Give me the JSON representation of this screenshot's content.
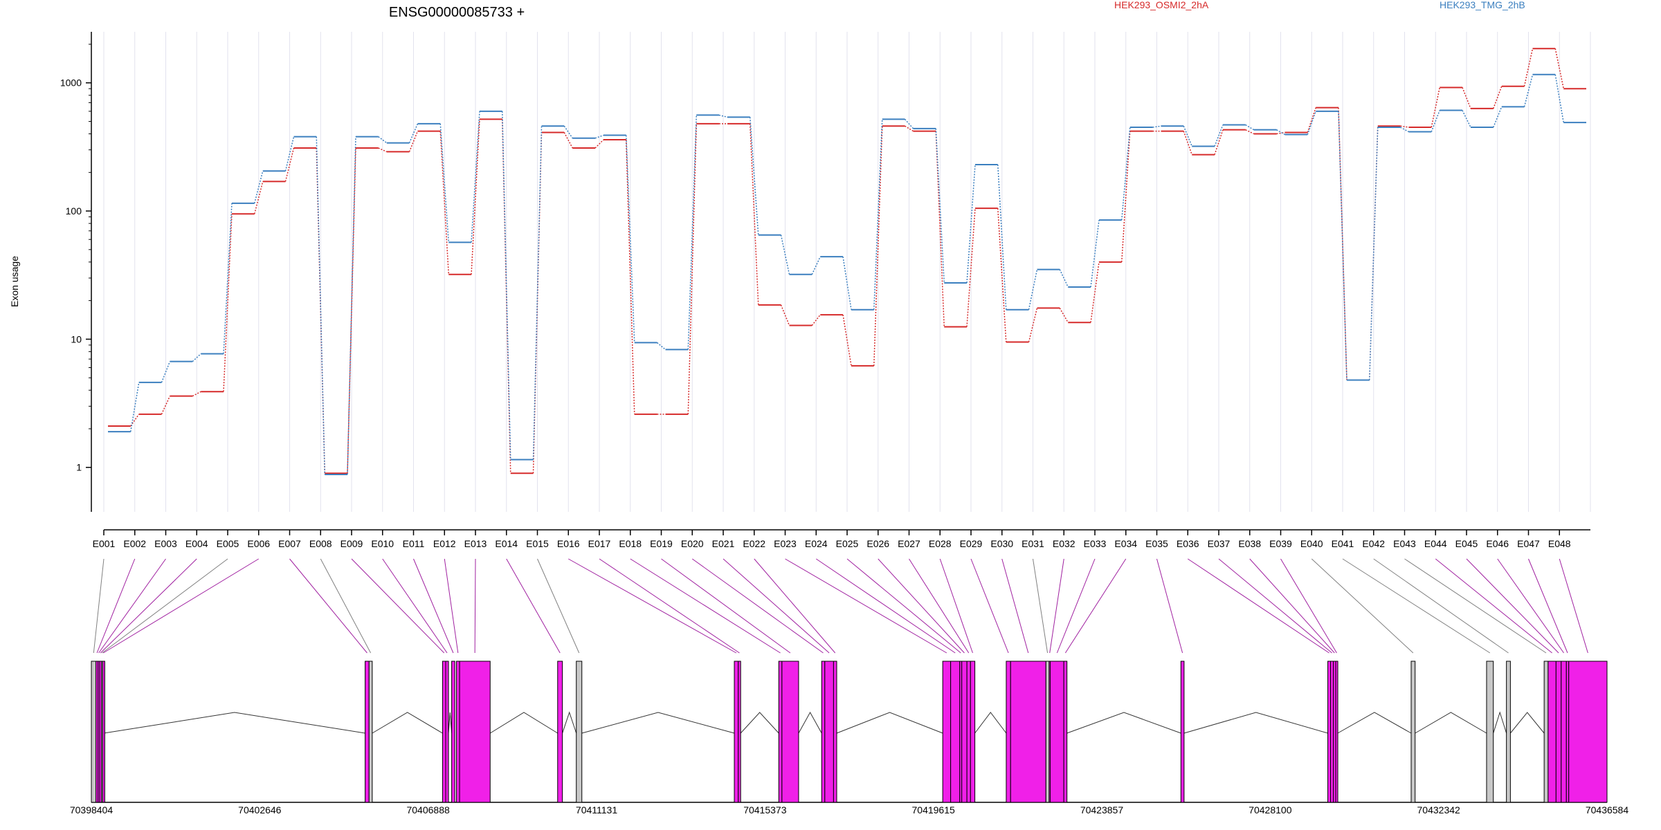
{
  "colors": {
    "series_a": "#d62a2a",
    "series_b": "#3b7fbf",
    "exon_tested": "#f020e8",
    "exon_untested": "#c8c8c8",
    "connector_tested": "#a020a0",
    "connector_untested": "#808080",
    "grid": "#e2e2ee"
  },
  "chart_data": {
    "type": "line",
    "title": "ENSG00000085733 +",
    "ylabel": "Exon usage",
    "xlabel": "",
    "yscale": "log",
    "ylim": [
      0.45,
      2500
    ],
    "yticks": [
      1,
      10,
      100,
      1000
    ],
    "ytick_labels": [
      "1",
      "10",
      "100",
      "1000"
    ],
    "categories": [
      "E001",
      "E002",
      "E003",
      "E004",
      "E005",
      "E006",
      "E007",
      "E008",
      "E009",
      "E010",
      "E011",
      "E012",
      "E013",
      "E014",
      "E015",
      "E016",
      "E017",
      "E018",
      "E019",
      "E020",
      "E021",
      "E022",
      "E023",
      "E024",
      "E025",
      "E026",
      "E027",
      "E028",
      "E029",
      "E030",
      "E031",
      "E032",
      "E033",
      "E034",
      "E035",
      "E036",
      "E037",
      "E038",
      "E039",
      "E040",
      "E041",
      "E042",
      "E043",
      "E044",
      "E045",
      "E046",
      "E047",
      "E048"
    ],
    "legend_position": "top",
    "grid": true,
    "series": [
      {
        "name": "HEK293_OSMI2_2hA",
        "values": [
          2.1,
          2.6,
          3.6,
          3.9,
          95,
          170,
          310,
          0.9,
          310,
          290,
          420,
          32,
          520,
          0.9,
          410,
          310,
          360,
          2.6,
          2.6,
          480,
          480,
          18.5,
          12.8,
          15.5,
          6.2,
          460,
          420,
          12.5,
          105,
          9.5,
          17.5,
          13.5,
          40,
          420,
          420,
          275,
          430,
          400,
          410,
          640,
          4.8,
          460,
          450,
          920,
          630,
          940,
          1850,
          900
        ]
      },
      {
        "name": "HEK293_TMG_2hB",
        "values": [
          1.9,
          4.6,
          6.7,
          7.7,
          115,
          205,
          380,
          0.88,
          380,
          340,
          480,
          57,
          600,
          1.15,
          460,
          370,
          390,
          9.4,
          8.3,
          560,
          540,
          65,
          32,
          44,
          17,
          520,
          440,
          27.5,
          230,
          17,
          35,
          25.5,
          85,
          450,
          460,
          320,
          470,
          430,
          395,
          600,
          4.8,
          450,
          415,
          610,
          450,
          650,
          1160,
          490
        ]
      }
    ],
    "gene_model": {
      "coordinate_ticks": [
        70398404,
        70402646,
        70406888,
        70411131,
        70415373,
        70419615,
        70423857,
        70428100,
        70432342,
        70436584
      ],
      "start": 70398404,
      "end": 70436584,
      "exons": [
        {
          "id": "E001",
          "start": 70398404,
          "end": 70398520,
          "tested": false
        },
        {
          "id": "E002",
          "start": 70398520,
          "end": 70398570,
          "tested": true
        },
        {
          "id": "E003",
          "start": 70398570,
          "end": 70398610,
          "tested": true
        },
        {
          "id": "E004",
          "start": 70398610,
          "end": 70398660,
          "tested": true
        },
        {
          "id": "E005",
          "start": 70398660,
          "end": 70398690,
          "tested": false
        },
        {
          "id": "E006",
          "start": 70398690,
          "end": 70398720,
          "tested": true
        },
        {
          "id": "E007",
          "start": 70405300,
          "end": 70405400,
          "tested": true
        },
        {
          "id": "E008",
          "start": 70405400,
          "end": 70405480,
          "tested": false
        },
        {
          "id": "E009",
          "start": 70407250,
          "end": 70407330,
          "tested": true
        },
        {
          "id": "E010",
          "start": 70407330,
          "end": 70407400,
          "tested": true
        },
        {
          "id": "E011",
          "start": 70407480,
          "end": 70407560,
          "tested": true
        },
        {
          "id": "E012",
          "start": 70407600,
          "end": 70407680,
          "tested": true
        },
        {
          "id": "E013",
          "start": 70407680,
          "end": 70408450,
          "tested": true
        },
        {
          "id": "E014",
          "start": 70410150,
          "end": 70410270,
          "tested": true
        },
        {
          "id": "E015",
          "start": 70410620,
          "end": 70410760,
          "tested": false
        },
        {
          "id": "E016",
          "start": 70414600,
          "end": 70414700,
          "tested": true
        },
        {
          "id": "E017",
          "start": 70414700,
          "end": 70414760,
          "tested": true
        },
        {
          "id": "E018",
          "start": 70415720,
          "end": 70415800,
          "tested": true
        },
        {
          "id": "E019",
          "start": 70415800,
          "end": 70416220,
          "tested": true
        },
        {
          "id": "E020",
          "start": 70416800,
          "end": 70416880,
          "tested": true
        },
        {
          "id": "E021",
          "start": 70416880,
          "end": 70417100,
          "tested": true
        },
        {
          "id": "E022",
          "start": 70417100,
          "end": 70417180,
          "tested": true
        },
        {
          "id": "E023",
          "start": 70419850,
          "end": 70420050,
          "tested": true
        },
        {
          "id": "E024",
          "start": 70420050,
          "end": 70420280,
          "tested": true
        },
        {
          "id": "E025",
          "start": 70420280,
          "end": 70420330,
          "tested": true
        },
        {
          "id": "E026",
          "start": 70420330,
          "end": 70420460,
          "tested": true
        },
        {
          "id": "E027",
          "start": 70420460,
          "end": 70420550,
          "tested": true
        },
        {
          "id": "E028",
          "start": 70420550,
          "end": 70420660,
          "tested": true
        },
        {
          "id": "E029",
          "start": 70421450,
          "end": 70421560,
          "tested": true
        },
        {
          "id": "E030",
          "start": 70421560,
          "end": 70422450,
          "tested": true
        },
        {
          "id": "E031",
          "start": 70422450,
          "end": 70422530,
          "tested": false
        },
        {
          "id": "E032",
          "start": 70422530,
          "end": 70422560,
          "tested": true
        },
        {
          "id": "E033",
          "start": 70422560,
          "end": 70422900,
          "tested": true
        },
        {
          "id": "E034",
          "start": 70422900,
          "end": 70422980,
          "tested": true
        },
        {
          "id": "E035",
          "start": 70425850,
          "end": 70425930,
          "tested": true
        },
        {
          "id": "E036",
          "start": 70429550,
          "end": 70429620,
          "tested": true
        },
        {
          "id": "E037",
          "start": 70429620,
          "end": 70429690,
          "tested": true
        },
        {
          "id": "E038",
          "start": 70429690,
          "end": 70429750,
          "tested": true
        },
        {
          "id": "E039",
          "start": 70429750,
          "end": 70429800,
          "tested": true
        },
        {
          "id": "E040",
          "start": 70431650,
          "end": 70431750,
          "tested": false
        },
        {
          "id": "E041",
          "start": 70433550,
          "end": 70433720,
          "tested": false
        },
        {
          "id": "E042",
          "start": 70434050,
          "end": 70434150,
          "tested": false
        },
        {
          "id": "E043",
          "start": 70435000,
          "end": 70435100,
          "tested": false
        },
        {
          "id": "E044",
          "start": 70435100,
          "end": 70435300,
          "tested": true
        },
        {
          "id": "E045",
          "start": 70435300,
          "end": 70435430,
          "tested": true
        },
        {
          "id": "E046",
          "start": 70435430,
          "end": 70435560,
          "tested": true
        },
        {
          "id": "E047",
          "start": 70435560,
          "end": 70435620,
          "tested": true
        },
        {
          "id": "E048",
          "start": 70435620,
          "end": 70436584,
          "tested": true
        }
      ]
    }
  }
}
